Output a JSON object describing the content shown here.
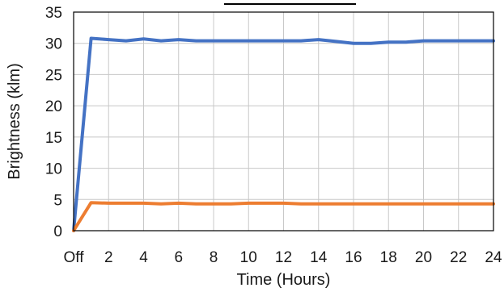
{
  "chart_data": {
    "type": "line",
    "title": "",
    "xlabel": "Time (Hours)",
    "ylabel": "Brightness (klm)",
    "xlim": [
      0,
      24
    ],
    "ylim": [
      0,
      35
    ],
    "grid": true,
    "legend": "none",
    "x_tick_values": [
      0,
      2,
      4,
      6,
      8,
      10,
      12,
      14,
      16,
      18,
      20,
      22,
      24
    ],
    "x_tick_labels": [
      "Off",
      "2",
      "4",
      "6",
      "8",
      "10",
      "12",
      "14",
      "16",
      "18",
      "20",
      "22",
      "24"
    ],
    "y_tick_values": [
      0,
      5,
      10,
      15,
      20,
      25,
      30,
      35
    ],
    "y_tick_labels": [
      "0",
      "5",
      "10",
      "15",
      "20",
      "25",
      "30",
      "35"
    ],
    "x": [
      0,
      1,
      2,
      3,
      4,
      5,
      6,
      7,
      8,
      9,
      10,
      11,
      12,
      13,
      14,
      15,
      16,
      17,
      18,
      19,
      20,
      21,
      22,
      23,
      24
    ],
    "series": [
      {
        "color": "#4472C4",
        "values": [
          0,
          30.8,
          30.6,
          30.4,
          30.7,
          30.4,
          30.6,
          30.4,
          30.4,
          30.4,
          30.4,
          30.4,
          30.4,
          30.4,
          30.6,
          30.3,
          30.0,
          30.0,
          30.2,
          30.2,
          30.4,
          30.4,
          30.4,
          30.4,
          30.4
        ]
      },
      {
        "color": "#ED7D31",
        "values": [
          0,
          4.5,
          4.4,
          4.4,
          4.4,
          4.3,
          4.4,
          4.3,
          4.3,
          4.3,
          4.4,
          4.4,
          4.4,
          4.3,
          4.3,
          4.3,
          4.3,
          4.3,
          4.3,
          4.3,
          4.3,
          4.3,
          4.3,
          4.3,
          4.3
        ]
      }
    ]
  }
}
